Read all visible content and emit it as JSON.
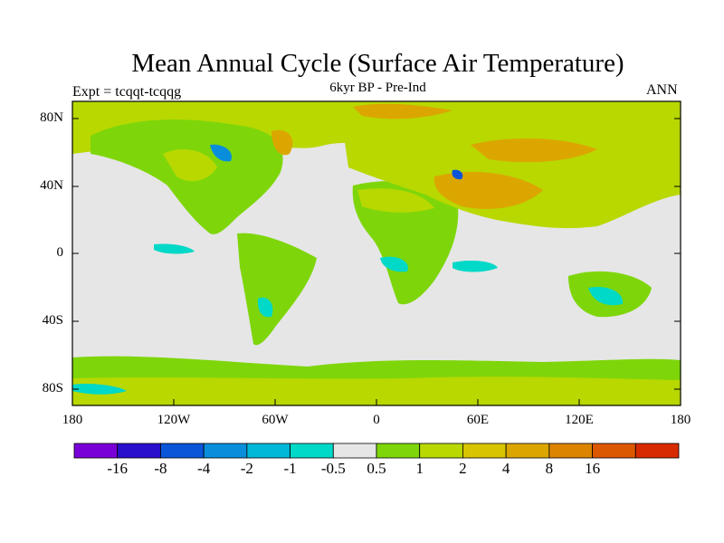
{
  "title": "Mean Annual Cycle (Surface Air Temperature)",
  "subtitle": "6kyr BP - Pre-Ind",
  "left_label": "Expt = tcqqt-tcqqg",
  "right_label": "ANN",
  "lat_ticks": [
    "80N",
    "40N",
    "0",
    "40S",
    "80S"
  ],
  "lon_ticks": [
    "180",
    "120W",
    "60W",
    "0",
    "60E",
    "120E",
    "180"
  ],
  "colorbar": {
    "colors": [
      "#7a00d8",
      "#2a0fcc",
      "#0b55d8",
      "#0a8edc",
      "#00b8d8",
      "#00d8c8",
      "#e6e6e6",
      "#7ed60a",
      "#b8d800",
      "#d8c400",
      "#dca600",
      "#dc8400",
      "#dc5800",
      "#d82a00"
    ],
    "labels": [
      "-16",
      "-8",
      "-4",
      "-2",
      "-1",
      "-0.5",
      "0.5",
      "1",
      "2",
      "4",
      "8",
      "16"
    ]
  }
}
